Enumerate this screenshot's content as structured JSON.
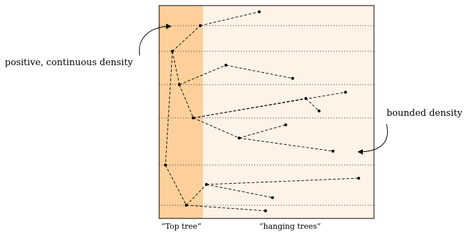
{
  "labels": {
    "left_annotation": "positive, continuous density",
    "right_annotation": "bounded density",
    "top_tree_caption": "“Top tree”",
    "hanging_trees_caption": "“hanging trees”"
  },
  "colors": {
    "top_tree_region": "#fdd09b",
    "hanging_region": "#fef3e6",
    "frame": "#000000",
    "dotted_line": "#444444",
    "edges": "#000000"
  }
}
